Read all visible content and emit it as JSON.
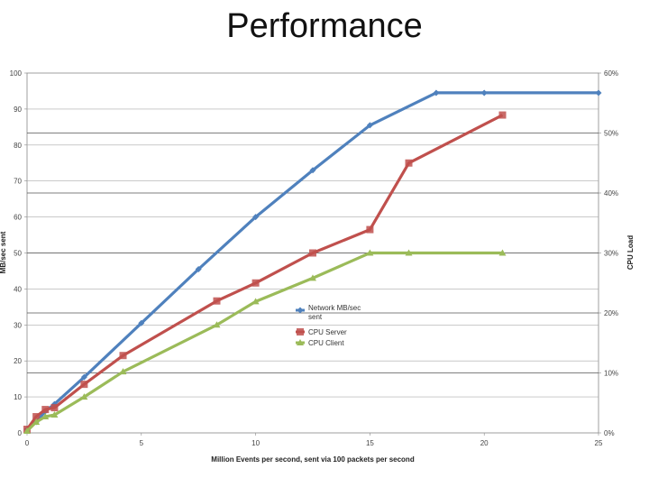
{
  "slide": {
    "title": "Performance"
  },
  "chart_data": {
    "type": "line",
    "xlabel": "Million Events per second, sent via 100 packets per second",
    "ylabel": "MB/sec sent",
    "y2label": "CPU Load",
    "xlim": [
      0,
      25
    ],
    "ylim": [
      0,
      100
    ],
    "y2lim": [
      0,
      60
    ],
    "xticks": [
      "0",
      "5",
      "10",
      "15",
      "20",
      "25"
    ],
    "yticks": [
      "0",
      "10",
      "20",
      "30",
      "40",
      "50",
      "60",
      "70",
      "80",
      "90",
      "100"
    ],
    "y2ticks": [
      "0%",
      "10%",
      "20%",
      "30%",
      "40%",
      "50%",
      "60%"
    ],
    "grid": true,
    "legend_position": "center",
    "series": [
      {
        "name": "Network MB/sec sent",
        "axis": "left",
        "marker": "diamond",
        "color": "#4f81bd",
        "x": [
          0,
          0.4,
          0.8,
          1.2,
          2.5,
          5,
          7.5,
          10,
          12.5,
          15,
          17.9,
          20,
          25
        ],
        "y": [
          1,
          3,
          6,
          8,
          15.5,
          30.5,
          45.5,
          60,
          73,
          85.5,
          94.5,
          94.5,
          94.5
        ]
      },
      {
        "name": "CPU Server",
        "axis": "right",
        "marker": "square",
        "color": "#c0504d",
        "x": [
          0,
          0.4,
          0.8,
          1.2,
          2.5,
          4.2,
          8.3,
          10,
          12.5,
          15,
          16.7,
          20.8
        ],
        "y": [
          0.6,
          2.7,
          3.9,
          4.2,
          8.1,
          12.9,
          22,
          25,
          30,
          33.9,
          45,
          53
        ]
      },
      {
        "name": "CPU Client",
        "axis": "right",
        "marker": "triangle",
        "color": "#9bbb59",
        "x": [
          0,
          0.4,
          0.8,
          1.2,
          2.5,
          4.2,
          8.3,
          10,
          12.5,
          15,
          16.7,
          20.8
        ],
        "y": [
          0.3,
          1.8,
          2.7,
          3,
          6,
          10.2,
          18,
          21.9,
          25.8,
          30,
          30,
          30
        ]
      }
    ]
  }
}
